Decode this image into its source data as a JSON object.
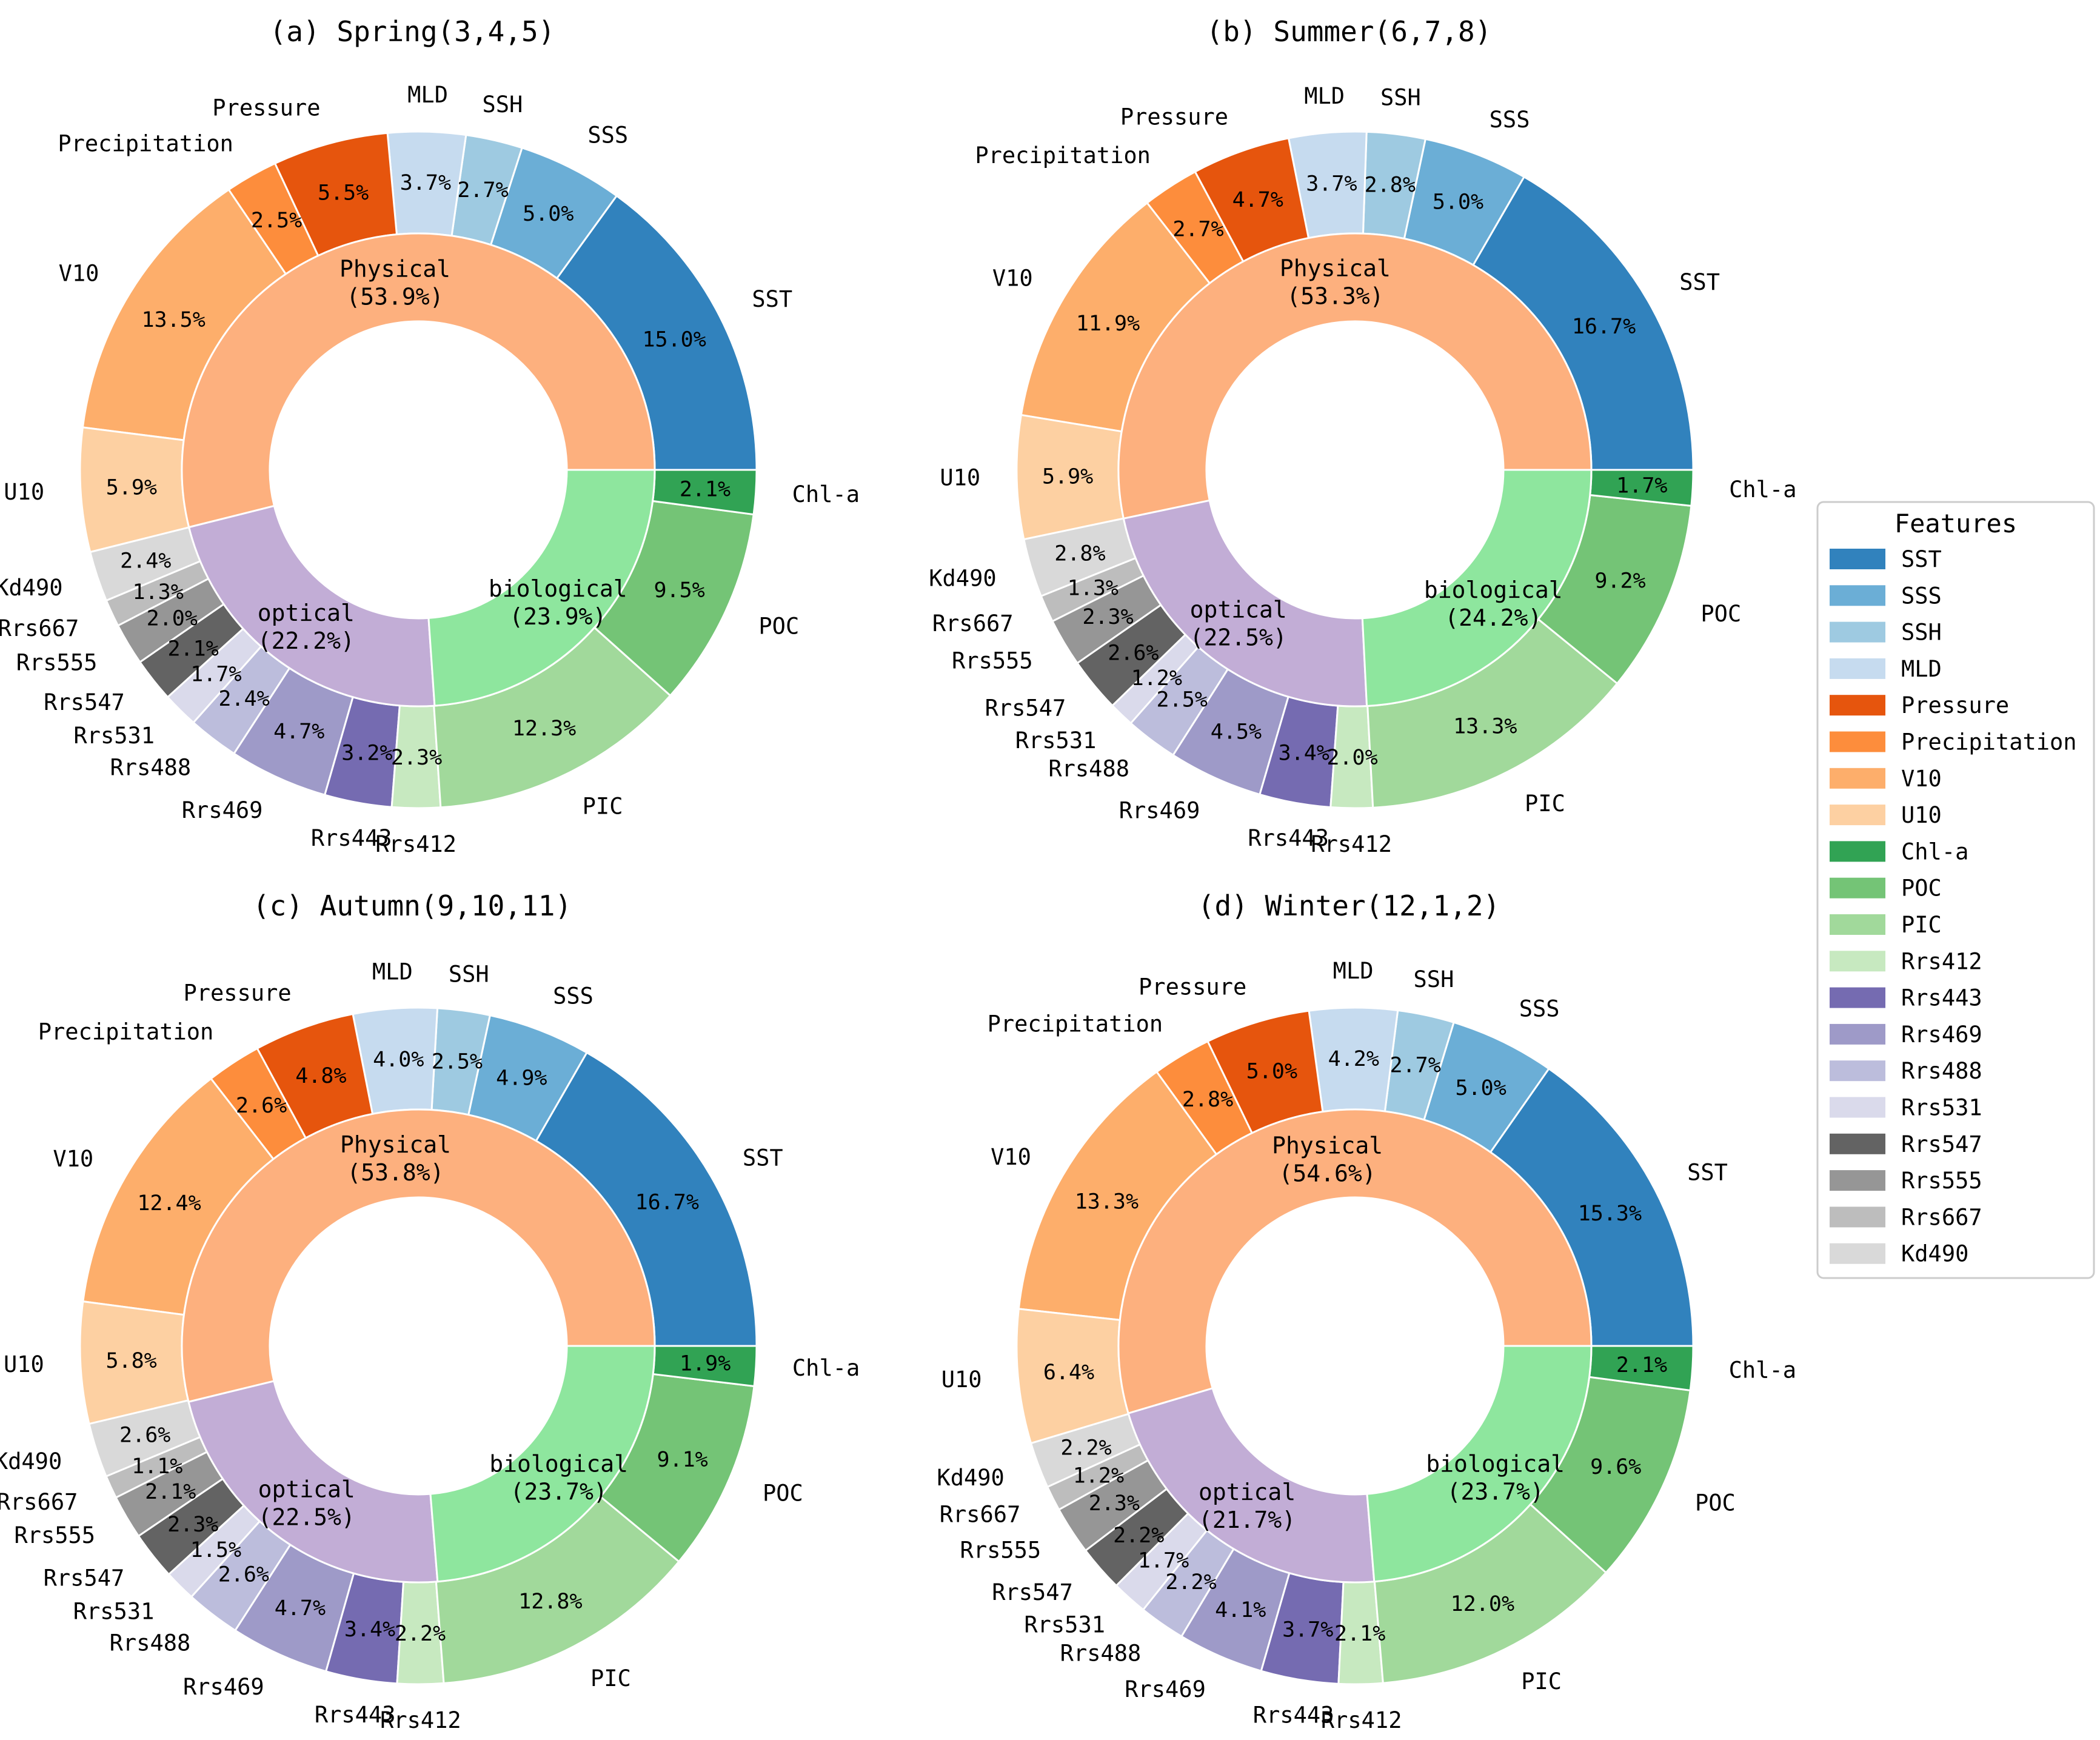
{
  "chart_data": [
    {
      "type": "pie",
      "title": "(a)  Spring(3,4,5)",
      "groups": [
        {
          "name": "Physical",
          "label": "(53.9%)",
          "value": 53.9
        },
        {
          "name": "optical",
          "label": "(22.2%)",
          "value": 22.2
        },
        {
          "name": "biological",
          "label": "(23.9%)",
          "value": 23.9
        }
      ],
      "slices": [
        {
          "name": "SST",
          "value": 15.0,
          "label": "15.0%"
        },
        {
          "name": "SSS",
          "value": 5.0,
          "label": "5.0%"
        },
        {
          "name": "SSH",
          "value": 2.7,
          "label": "2.7%"
        },
        {
          "name": "MLD",
          "value": 3.7,
          "label": "3.7%"
        },
        {
          "name": "Pressure",
          "value": 5.5,
          "label": "5.5%"
        },
        {
          "name": "Precipitation",
          "value": 2.5,
          "label": "2.5%"
        },
        {
          "name": "V10",
          "value": 13.5,
          "label": "13.5%"
        },
        {
          "name": "U10",
          "value": 5.9,
          "label": "5.9%"
        },
        {
          "name": "Kd490",
          "value": 2.4,
          "label": "2.4%"
        },
        {
          "name": "Rrs667",
          "value": 1.3,
          "label": "1.3%"
        },
        {
          "name": "Rrs555",
          "value": 2.0,
          "label": "2.0%"
        },
        {
          "name": "Rrs547",
          "value": 2.1,
          "label": "2.1%"
        },
        {
          "name": "Rrs531",
          "value": 1.7,
          "label": "1.7%"
        },
        {
          "name": "Rrs488",
          "value": 2.4,
          "label": "2.4%"
        },
        {
          "name": "Rrs469",
          "value": 4.7,
          "label": "4.7%"
        },
        {
          "name": "Rrs443",
          "value": 3.2,
          "label": "3.2%"
        },
        {
          "name": "Rrs412",
          "value": 2.3,
          "label": "2.3%"
        },
        {
          "name": "PIC",
          "value": 12.3,
          "label": "12.3%"
        },
        {
          "name": "POC",
          "value": 9.5,
          "label": "9.5%"
        },
        {
          "name": "Chl-a",
          "value": 2.1,
          "label": "2.1%"
        }
      ]
    },
    {
      "type": "pie",
      "title": "(b)  Summer(6,7,8)",
      "groups": [
        {
          "name": "Physical",
          "label": "(53.3%)",
          "value": 53.3
        },
        {
          "name": "optical",
          "label": "(22.5%)",
          "value": 22.5
        },
        {
          "name": "biological",
          "label": "(24.2%)",
          "value": 24.2
        }
      ],
      "slices": [
        {
          "name": "SST",
          "value": 16.7,
          "label": "16.7%"
        },
        {
          "name": "SSS",
          "value": 5.0,
          "label": "5.0%"
        },
        {
          "name": "SSH",
          "value": 2.8,
          "label": "2.8%"
        },
        {
          "name": "MLD",
          "value": 3.7,
          "label": "3.7%"
        },
        {
          "name": "Pressure",
          "value": 4.7,
          "label": "4.7%"
        },
        {
          "name": "Precipitation",
          "value": 2.7,
          "label": "2.7%"
        },
        {
          "name": "V10",
          "value": 11.9,
          "label": "11.9%"
        },
        {
          "name": "U10",
          "value": 5.9,
          "label": "5.9%"
        },
        {
          "name": "Kd490",
          "value": 2.8,
          "label": "2.8%"
        },
        {
          "name": "Rrs667",
          "value": 1.3,
          "label": "1.3%"
        },
        {
          "name": "Rrs555",
          "value": 2.3,
          "label": "2.3%"
        },
        {
          "name": "Rrs547",
          "value": 2.6,
          "label": "2.6%"
        },
        {
          "name": "Rrs531",
          "value": 1.2,
          "label": "1.2%"
        },
        {
          "name": "Rrs488",
          "value": 2.5,
          "label": "2.5%"
        },
        {
          "name": "Rrs469",
          "value": 4.5,
          "label": "4.5%"
        },
        {
          "name": "Rrs443",
          "value": 3.4,
          "label": "3.4%"
        },
        {
          "name": "Rrs412",
          "value": 2.0,
          "label": "2.0%"
        },
        {
          "name": "PIC",
          "value": 13.3,
          "label": "13.3%"
        },
        {
          "name": "POC",
          "value": 9.2,
          "label": "9.2%"
        },
        {
          "name": "Chl-a",
          "value": 1.7,
          "label": "1.7%"
        }
      ]
    },
    {
      "type": "pie",
      "title": "(c)  Autumn(9,10,11)",
      "groups": [
        {
          "name": "Physical",
          "label": "(53.8%)",
          "value": 53.8
        },
        {
          "name": "optical",
          "label": "(22.5%)",
          "value": 22.5
        },
        {
          "name": "biological",
          "label": "(23.7%)",
          "value": 23.7
        }
      ],
      "slices": [
        {
          "name": "SST",
          "value": 16.7,
          "label": "16.7%"
        },
        {
          "name": "SSS",
          "value": 4.9,
          "label": "4.9%"
        },
        {
          "name": "SSH",
          "value": 2.5,
          "label": "2.5%"
        },
        {
          "name": "MLD",
          "value": 4.0,
          "label": "4.0%"
        },
        {
          "name": "Pressure",
          "value": 4.8,
          "label": "4.8%"
        },
        {
          "name": "Precipitation",
          "value": 2.6,
          "label": "2.6%"
        },
        {
          "name": "V10",
          "value": 12.4,
          "label": "12.4%"
        },
        {
          "name": "U10",
          "value": 5.8,
          "label": "5.8%"
        },
        {
          "name": "Kd490",
          "value": 2.6,
          "label": "2.6%"
        },
        {
          "name": "Rrs667",
          "value": 1.1,
          "label": "1.1%"
        },
        {
          "name": "Rrs555",
          "value": 2.1,
          "label": "2.1%"
        },
        {
          "name": "Rrs547",
          "value": 2.3,
          "label": "2.3%"
        },
        {
          "name": "Rrs531",
          "value": 1.5,
          "label": "1.5%"
        },
        {
          "name": "Rrs488",
          "value": 2.6,
          "label": "2.6%"
        },
        {
          "name": "Rrs469",
          "value": 4.7,
          "label": "4.7%"
        },
        {
          "name": "Rrs443",
          "value": 3.4,
          "label": "3.4%"
        },
        {
          "name": "Rrs412",
          "value": 2.2,
          "label": "2.2%"
        },
        {
          "name": "PIC",
          "value": 12.8,
          "label": "12.8%"
        },
        {
          "name": "POC",
          "value": 9.1,
          "label": "9.1%"
        },
        {
          "name": "Chl-a",
          "value": 1.9,
          "label": "1.9%"
        }
      ]
    },
    {
      "type": "pie",
      "title": "(d)  Winter(12,1,2)",
      "groups": [
        {
          "name": "Physical",
          "label": "(54.6%)",
          "value": 54.6
        },
        {
          "name": "optical",
          "label": "(21.7%)",
          "value": 21.7
        },
        {
          "name": "biological",
          "label": "(23.7%)",
          "value": 23.7
        }
      ],
      "slices": [
        {
          "name": "SST",
          "value": 15.3,
          "label": "15.3%"
        },
        {
          "name": "SSS",
          "value": 5.0,
          "label": "5.0%"
        },
        {
          "name": "SSH",
          "value": 2.7,
          "label": "2.7%"
        },
        {
          "name": "MLD",
          "value": 4.2,
          "label": "4.2%"
        },
        {
          "name": "Pressure",
          "value": 5.0,
          "label": "5.0%"
        },
        {
          "name": "Precipitation",
          "value": 2.8,
          "label": "2.8%"
        },
        {
          "name": "V10",
          "value": 13.3,
          "label": "13.3%"
        },
        {
          "name": "U10",
          "value": 6.4,
          "label": "6.4%"
        },
        {
          "name": "Kd490",
          "value": 2.2,
          "label": "2.2%"
        },
        {
          "name": "Rrs667",
          "value": 1.2,
          "label": "1.2%"
        },
        {
          "name": "Rrs555",
          "value": 2.3,
          "label": "2.3%"
        },
        {
          "name": "Rrs547",
          "value": 2.2,
          "label": "2.2%"
        },
        {
          "name": "Rrs531",
          "value": 1.7,
          "label": "1.7%"
        },
        {
          "name": "Rrs488",
          "value": 2.2,
          "label": "2.2%"
        },
        {
          "name": "Rrs469",
          "value": 4.1,
          "label": "4.1%"
        },
        {
          "name": "Rrs443",
          "value": 3.7,
          "label": "3.7%"
        },
        {
          "name": "Rrs412",
          "value": 2.1,
          "label": "2.1%"
        },
        {
          "name": "PIC",
          "value": 12.0,
          "label": "12.0%"
        },
        {
          "name": "POC",
          "value": 9.6,
          "label": "9.6%"
        },
        {
          "name": "Chl-a",
          "value": 2.1,
          "label": "2.1%"
        }
      ]
    }
  ],
  "legend": {
    "title": "Features",
    "items": [
      {
        "name": "SST",
        "color": "#3182bd"
      },
      {
        "name": "SSS",
        "color": "#6baed6"
      },
      {
        "name": "SSH",
        "color": "#9ecae1"
      },
      {
        "name": "MLD",
        "color": "#c6dbef"
      },
      {
        "name": "Pressure",
        "color": "#e6550d"
      },
      {
        "name": "Precipitation",
        "color": "#fd8d3c"
      },
      {
        "name": "V10",
        "color": "#fdae6b"
      },
      {
        "name": "U10",
        "color": "#fdd0a2"
      },
      {
        "name": "Chl-a",
        "color": "#31a354"
      },
      {
        "name": "POC",
        "color": "#74c476"
      },
      {
        "name": "PIC",
        "color": "#a1d99b"
      },
      {
        "name": "Rrs412",
        "color": "#c7e9c0"
      },
      {
        "name": "Rrs443",
        "color": "#756bb1"
      },
      {
        "name": "Rrs469",
        "color": "#9e9ac8"
      },
      {
        "name": "Rrs488",
        "color": "#bcbddc"
      },
      {
        "name": "Rrs531",
        "color": "#dadaeb"
      },
      {
        "name": "Rrs547",
        "color": "#636363"
      },
      {
        "name": "Rrs555",
        "color": "#969696"
      },
      {
        "name": "Rrs667",
        "color": "#bdbdbd"
      },
      {
        "name": "Kd490",
        "color": "#d9d9d9"
      }
    ]
  },
  "group_colors": {
    "Physical": "#fdb07e",
    "optical": "#c2add6",
    "biological": "#8ee69e"
  }
}
